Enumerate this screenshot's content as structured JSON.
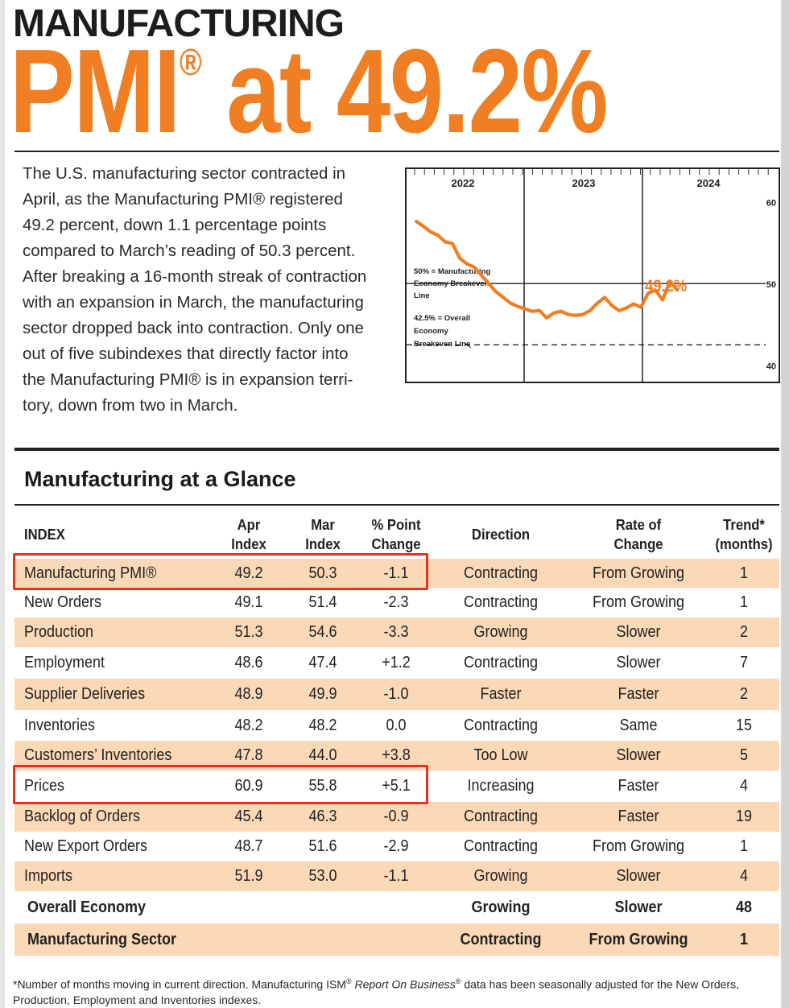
{
  "header": {
    "kicker": "MANUFACTURING",
    "headline_main": "PMI",
    "headline_reg": "®",
    "headline_rest": " at 49.2%"
  },
  "intro_text": [
    "The U.S. manufacturing sector contracted in",
    "April, as the Manufacturing PMI® registered",
    "49.2 percent, down 1.1 percentage points",
    "compared to March’s reading of 50.3 percent.",
    "After breaking a 16-month streak of contraction",
    "with an expansion in March, the manufacturing",
    "sector dropped back into contraction. Only one",
    "out of five subindexes that directly factor into",
    "the Manufacturing PMI® is in expansion terri-",
    "tory, down from two in March."
  ],
  "chart_data": {
    "type": "line",
    "years": [
      "2022",
      "2023",
      "2024"
    ],
    "ylim": [
      38,
      64
    ],
    "yticks": [
      40,
      50,
      60
    ],
    "series": [
      {
        "name": "",
        "color": "#f07e22",
        "values": [
          57.6,
          57.0,
          56.3,
          55.9,
          55.1,
          54.9,
          53.1,
          52.4,
          52.0,
          51.0,
          50.0,
          49.0,
          48.3,
          47.6,
          47.2,
          46.9,
          46.6,
          46.7,
          45.8,
          46.4,
          46.6,
          46.2,
          46.1,
          46.2,
          46.7,
          47.6,
          48.3,
          47.3,
          46.7,
          47.0,
          47.5,
          47.1,
          48.8,
          49.2,
          48.0,
          50.3,
          49.2
        ]
      }
    ],
    "last_value_label": "49.2%",
    "reference_lines": [
      {
        "value": 50,
        "label_lines": [
          "50% = Manufacturing",
          "Economy Breakeven",
          "Line"
        ],
        "style": "solid"
      },
      {
        "value": 42.5,
        "label_lines": [
          "42.5% = Overall",
          "Economy",
          "Breakeven Line"
        ],
        "style": "dashed"
      }
    ]
  },
  "section_title": "Manufacturing at a Glance",
  "table": {
    "headers": {
      "index": "INDEX",
      "apr": [
        "Apr",
        "Index"
      ],
      "mar": [
        "Mar",
        "Index"
      ],
      "change": [
        "% Point",
        "Change"
      ],
      "direction": "Direction",
      "rate": [
        "Rate of",
        "Change"
      ],
      "trend": [
        "Trend*",
        "(months)"
      ]
    },
    "rows": [
      {
        "index": "Manufacturing PMI®",
        "apr": "49.2",
        "mar": "50.3",
        "change": "-1.1",
        "direction": "Contracting",
        "rate": "From Growing",
        "trend": "1",
        "highlight": true
      },
      {
        "index": "New Orders",
        "apr": "49.1",
        "mar": "51.4",
        "change": "-2.3",
        "direction": "Contracting",
        "rate": "From Growing",
        "trend": "1"
      },
      {
        "index": "Production",
        "apr": "51.3",
        "mar": "54.6",
        "change": "-3.3",
        "direction": "Growing",
        "rate": "Slower",
        "trend": "2"
      },
      {
        "index": "Employment",
        "apr": "48.6",
        "mar": "47.4",
        "change": "+1.2",
        "direction": "Contracting",
        "rate": "Slower",
        "trend": "7"
      },
      {
        "index": "Supplier Deliveries",
        "apr": "48.9",
        "mar": "49.9",
        "change": "-1.0",
        "direction": "Faster",
        "rate": "Faster",
        "trend": "2"
      },
      {
        "index": "Inventories",
        "apr": "48.2",
        "mar": "48.2",
        "change": "0.0",
        "direction": "Contracting",
        "rate": "Same",
        "trend": "15"
      },
      {
        "index": "Customers’ Inventories",
        "apr": "47.8",
        "mar": "44.0",
        "change": "+3.8",
        "direction": "Too Low",
        "rate": "Slower",
        "trend": "5"
      },
      {
        "index": "Prices",
        "apr": "60.9",
        "mar": "55.8",
        "change": "+5.1",
        "direction": "Increasing",
        "rate": "Faster",
        "trend": "4",
        "highlight": true
      },
      {
        "index": "Backlog of Orders",
        "apr": "45.4",
        "mar": "46.3",
        "change": "-0.9",
        "direction": "Contracting",
        "rate": "Faster",
        "trend": "19"
      },
      {
        "index": "New Export Orders",
        "apr": "48.7",
        "mar": "51.6",
        "change": "-2.9",
        "direction": "Contracting",
        "rate": "From Growing",
        "trend": "1"
      },
      {
        "index": "Imports",
        "apr": "51.9",
        "mar": "53.0",
        "change": "-1.1",
        "direction": "Growing",
        "rate": "Slower",
        "trend": "4"
      },
      {
        "index": "Overall Economy",
        "apr": "",
        "mar": "",
        "change": "",
        "direction": "Growing",
        "rate": "Slower",
        "trend": "48",
        "bold": true
      },
      {
        "index": "Manufacturing Sector",
        "apr": "",
        "mar": "",
        "change": "",
        "direction": "Contracting",
        "rate": "From Growing",
        "trend": "1",
        "bold": true
      }
    ]
  },
  "footnote": {
    "part1": "*Number of months moving in current direction. Manufacturing ISM",
    "reg": "®",
    "italic": "Report On Business",
    "part2": " data has been seasonally adjusted for the New Orders,",
    "line2": "Production, Employment and Inventories indexes."
  },
  "colors": {
    "accent": "#f07e22",
    "row_shade": "#fbd8b6",
    "highlight_box": "#e8321f"
  }
}
